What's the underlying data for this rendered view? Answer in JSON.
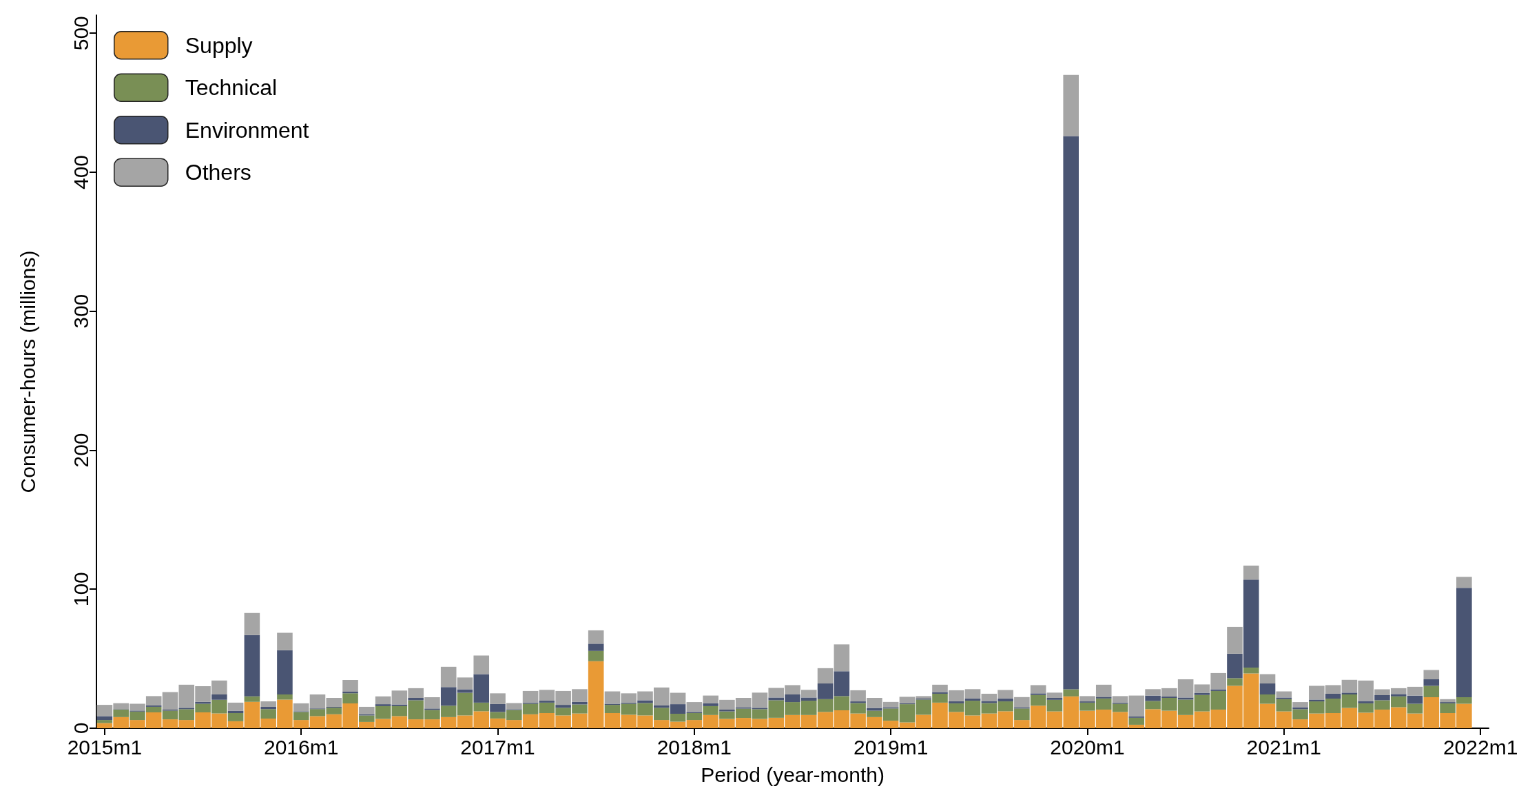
{
  "chart_data": {
    "type": "bar",
    "stacked": true,
    "xlabel": "Period (year-month)",
    "ylabel": "Consumer-hours (millions)",
    "legend": "top left",
    "ylim": [
      0,
      513
    ],
    "yticks": [
      0,
      100,
      200,
      300,
      400,
      500
    ],
    "categories": [
      "2015m1",
      null,
      null,
      null,
      null,
      null,
      null,
      null,
      null,
      null,
      null,
      null,
      "2016m1",
      null,
      null,
      null,
      null,
      null,
      null,
      null,
      null,
      null,
      null,
      null,
      "2017m1",
      null,
      null,
      null,
      null,
      null,
      null,
      null,
      null,
      null,
      null,
      null,
      "2018m1",
      null,
      null,
      null,
      null,
      null,
      null,
      null,
      null,
      null,
      null,
      null,
      "2019m1",
      null,
      null,
      null,
      null,
      null,
      null,
      null,
      null,
      null,
      null,
      null,
      "2020m1",
      null,
      null,
      null,
      null,
      null,
      null,
      null,
      null,
      null,
      null,
      null,
      "2021m1",
      null,
      null,
      null,
      null,
      null,
      null,
      null,
      null,
      null,
      null,
      null,
      "2022m1"
    ],
    "series": [
      {
        "name": "Supply",
        "color": "#e99a35",
        "values": [
          3.7,
          8,
          5.9,
          11.4,
          6.4,
          5.9,
          11.4,
          10.6,
          5,
          18.9,
          7,
          20.6,
          5.9,
          8.7,
          10,
          17.9,
          4.5,
          6.7,
          8.7,
          6.4,
          6.4,
          8,
          9.2,
          12.2,
          7,
          5.9,
          10,
          10.9,
          9.2,
          10.6,
          48.2,
          10.9,
          9.7,
          9.2,
          5.9,
          4.7,
          5.9,
          9.5,
          6.7,
          7.4,
          6.7,
          7.5,
          9.5,
          9.5,
          11.7,
          12.9,
          10.6,
          8,
          5.4,
          4.2,
          9.7,
          18.4,
          11.7,
          9.2,
          10.6,
          12.2,
          5.9,
          16.2,
          12.1,
          22.9,
          12.6,
          13.4,
          11.7,
          2.5,
          13.7,
          12.6,
          9.5,
          12.1,
          13.4,
          30.5,
          39.4,
          17.6,
          12.1,
          6.4,
          10.6,
          10.9,
          14.6,
          11.2,
          13.4,
          15.1,
          10.6,
          22.3,
          10.9,
          17.6,
          null
        ]
      },
      {
        "name": "Technical",
        "color": "#798f55",
        "values": [
          2.2,
          5.4,
          6.1,
          4,
          6.2,
          7.8,
          6.2,
          9.8,
          5.9,
          4,
          6.7,
          3.7,
          5.8,
          5,
          4.7,
          7.2,
          4.7,
          9.2,
          7.2,
          13.7,
          6.7,
          8.2,
          16.3,
          6.2,
          4.7,
          7.2,
          7.6,
          7.5,
          5.5,
          6.5,
          7.4,
          5.9,
          7.9,
          8.9,
          8.8,
          5.7,
          5,
          6.4,
          5.4,
          6.7,
          7,
          12.6,
          9.3,
          10.3,
          9.2,
          10.2,
          7.5,
          4.6,
          8.8,
          13.1,
          10.9,
          6.4,
          6.2,
          10.6,
          7.5,
          7.1,
          8.3,
          7.7,
          8.3,
          5.1,
          5.8,
          8,
          5.9,
          5,
          5.9,
          9.2,
          11.1,
          11.8,
          13.4,
          5.5,
          4.2,
          6.7,
          8.8,
          7.3,
          8.7,
          10.4,
          9.7,
          6.7,
          6.7,
          7.8,
          7,
          8.2,
          7,
          4.7,
          null
        ]
      },
      {
        "name": "Environment",
        "color": "#4a5573",
        "values": [
          2.8,
          0.3,
          0.7,
          1,
          0.8,
          1,
          1.3,
          3.9,
          1.7,
          44.1,
          1.7,
          31.8,
          0.5,
          0.5,
          0.7,
          1.2,
          0.9,
          1.4,
          1.2,
          1.7,
          1.1,
          13.4,
          2.5,
          20.5,
          5.7,
          0.6,
          0.8,
          1.4,
          2.1,
          1.8,
          5.2,
          0.8,
          0.8,
          2,
          1.7,
          6.9,
          0.8,
          2,
          1.3,
          1,
          1,
          2,
          5.5,
          2.3,
          11.3,
          17.9,
          1.2,
          2,
          0.9,
          0.6,
          0.7,
          1.2,
          1.5,
          1.6,
          1.5,
          2.1,
          0.9,
          1.2,
          1.4,
          398,
          0.9,
          1.2,
          0.8,
          0.9,
          3.9,
          1.1,
          1.5,
          1.6,
          1.2,
          17.6,
          63.3,
          7.9,
          1.2,
          1.4,
          1.3,
          3.5,
          1.3,
          1.7,
          3.7,
          1.7,
          5.9,
          4.7,
          0.9,
          78.7,
          null
        ]
      },
      {
        "name": "Others",
        "color": "#a5a5a5",
        "values": [
          8.1,
          4.3,
          4.9,
          6.7,
          12.6,
          16.6,
          11.3,
          10,
          5.8,
          15.9,
          3.9,
          12.6,
          5.7,
          10.1,
          6.4,
          8.4,
          5.3,
          5.6,
          10,
          7,
          8.1,
          14.6,
          8.5,
          13.4,
          7.7,
          4.4,
          8.4,
          7.8,
          10,
          9.2,
          9.6,
          8.9,
          6.7,
          6.4,
          12.9,
          8.2,
          7.1,
          5.6,
          7,
          6.7,
          10.9,
          6.9,
          6.7,
          5.5,
          11,
          19.3,
          8,
          7.2,
          3.8,
          4.7,
          1.8,
          5.3,
          7.9,
          6.7,
          5.2,
          6.1,
          7.3,
          5.9,
          3.8,
          44,
          3.8,
          8.7,
          4.7,
          15.1,
          4.6,
          5.9,
          13.1,
          6,
          11.7,
          19.3,
          10.1,
          6.7,
          4.4,
          3.7,
          9.9,
          6.2,
          9.2,
          14.7,
          4.2,
          4.2,
          6.3,
          6.7,
          2.1,
          7.9,
          null
        ]
      }
    ]
  }
}
